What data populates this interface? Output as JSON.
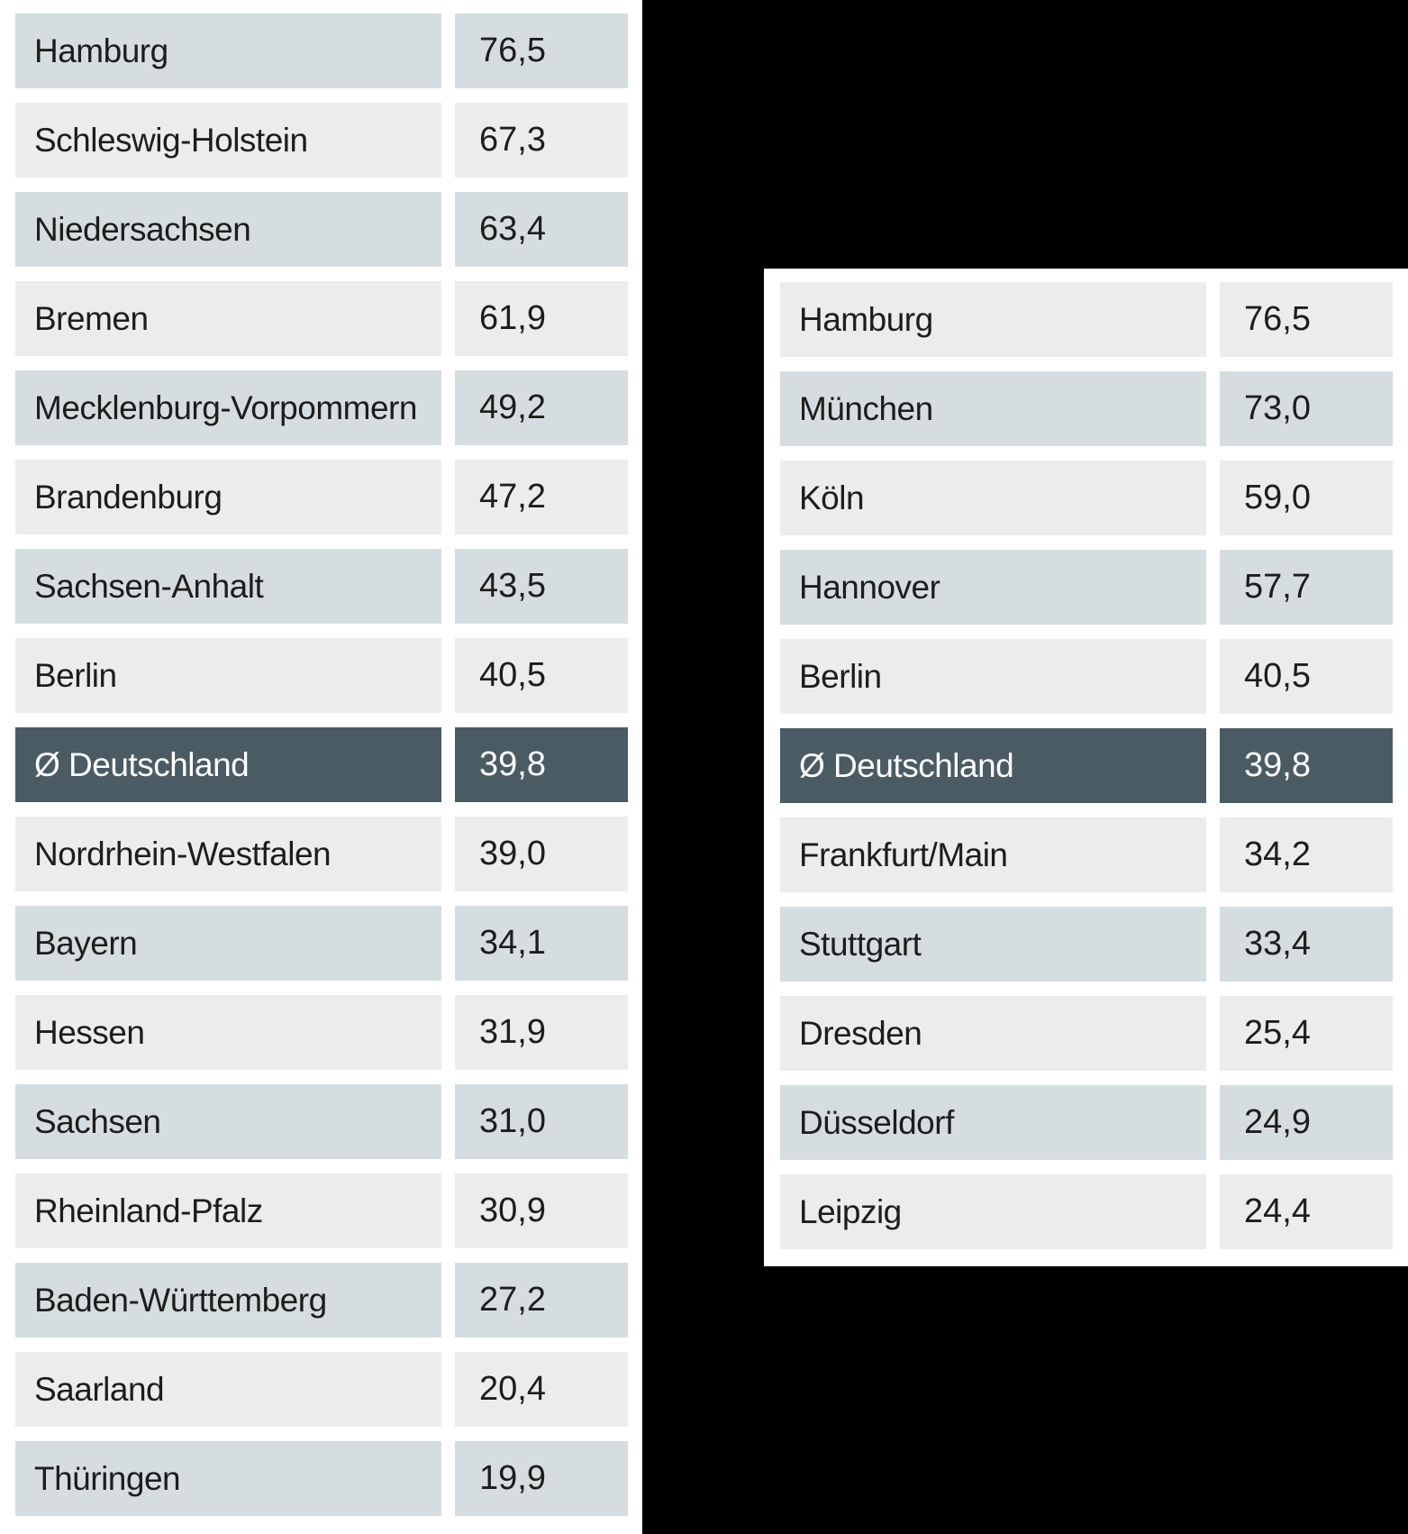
{
  "style": {
    "canvas_background": "#000000",
    "panel_background": "#ffffff",
    "row_shaded": "#d6dde0",
    "row_plain": "#ebeceb",
    "row_highlight": "#4a5b64",
    "text_color": "#1d1d1b",
    "text_highlight_color": "#ffffff"
  },
  "chart_data": [
    {
      "type": "table",
      "name": "bundeslaender-ranking",
      "value_format": "german-decimal-comma",
      "highlight_row": "Ø Deutschland",
      "rows": [
        {
          "label": "Hamburg",
          "value": "76,5",
          "numeric": 76.5,
          "variant": "shaded"
        },
        {
          "label": "Schleswig-Holstein",
          "value": "67,3",
          "numeric": 67.3,
          "variant": "plain"
        },
        {
          "label": "Niedersachsen",
          "value": "63,4",
          "numeric": 63.4,
          "variant": "shaded"
        },
        {
          "label": "Bremen",
          "value": "61,9",
          "numeric": 61.9,
          "variant": "plain"
        },
        {
          "label": "Mecklenburg-Vorpommern",
          "value": "49,2",
          "numeric": 49.2,
          "variant": "shaded"
        },
        {
          "label": "Brandenburg",
          "value": "47,2",
          "numeric": 47.2,
          "variant": "plain"
        },
        {
          "label": "Sachsen-Anhalt",
          "value": "43,5",
          "numeric": 43.5,
          "variant": "shaded"
        },
        {
          "label": "Berlin",
          "value": "40,5",
          "numeric": 40.5,
          "variant": "plain"
        },
        {
          "label": "Ø Deutschland",
          "value": "39,8",
          "numeric": 39.8,
          "variant": "highlight"
        },
        {
          "label": "Nordrhein-Westfalen",
          "value": "39,0",
          "numeric": 39.0,
          "variant": "plain"
        },
        {
          "label": "Bayern",
          "value": "34,1",
          "numeric": 34.1,
          "variant": "shaded"
        },
        {
          "label": "Hessen",
          "value": "31,9",
          "numeric": 31.9,
          "variant": "plain"
        },
        {
          "label": "Sachsen",
          "value": "31,0",
          "numeric": 31.0,
          "variant": "shaded"
        },
        {
          "label": "Rheinland-Pfalz",
          "value": "30,9",
          "numeric": 30.9,
          "variant": "plain"
        },
        {
          "label": "Baden-Württemberg",
          "value": "27,2",
          "numeric": 27.2,
          "variant": "shaded"
        },
        {
          "label": "Saarland",
          "value": "20,4",
          "numeric": 20.4,
          "variant": "plain"
        },
        {
          "label": "Thüringen",
          "value": "19,9",
          "numeric": 19.9,
          "variant": "shaded"
        }
      ]
    },
    {
      "type": "table",
      "name": "staedte-ranking",
      "value_format": "german-decimal-comma",
      "highlight_row": "Ø Deutschland",
      "rows": [
        {
          "label": "Hamburg",
          "value": "76,5",
          "numeric": 76.5,
          "variant": "plain"
        },
        {
          "label": "München",
          "value": "73,0",
          "numeric": 73.0,
          "variant": "shaded"
        },
        {
          "label": "Köln",
          "value": "59,0",
          "numeric": 59.0,
          "variant": "plain"
        },
        {
          "label": "Hannover",
          "value": "57,7",
          "numeric": 57.7,
          "variant": "shaded"
        },
        {
          "label": "Berlin",
          "value": "40,5",
          "numeric": 40.5,
          "variant": "plain"
        },
        {
          "label": "Ø Deutschland",
          "value": "39,8",
          "numeric": 39.8,
          "variant": "highlight"
        },
        {
          "label": "Frankfurt/Main",
          "value": "34,2",
          "numeric": 34.2,
          "variant": "plain"
        },
        {
          "label": "Stuttgart",
          "value": "33,4",
          "numeric": 33.4,
          "variant": "shaded"
        },
        {
          "label": "Dresden",
          "value": "25,4",
          "numeric": 25.4,
          "variant": "plain"
        },
        {
          "label": "Düsseldorf",
          "value": "24,9",
          "numeric": 24.9,
          "variant": "shaded"
        },
        {
          "label": "Leipzig",
          "value": "24,4",
          "numeric": 24.4,
          "variant": "plain"
        }
      ]
    }
  ]
}
